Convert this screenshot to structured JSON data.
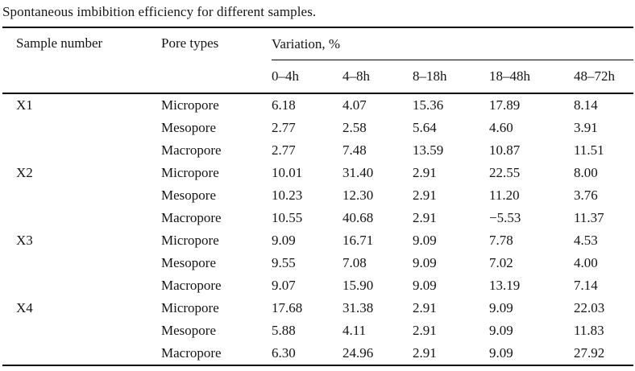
{
  "caption": "Spontaneous imbibition efficiency for different samples.",
  "header": {
    "sample": "Sample number",
    "pore": "Pore types",
    "variation": "Variation, %",
    "intervals": [
      "0–4h",
      "4–8h",
      "8–18h",
      "18–48h",
      "48–72h"
    ]
  },
  "rows": [
    {
      "sample": "X1",
      "pore": "Micropore",
      "v": [
        "6.18",
        "4.07",
        "15.36",
        "17.89",
        "8.14"
      ]
    },
    {
      "sample": "",
      "pore": "Mesopore",
      "v": [
        "2.77",
        "2.58",
        "5.64",
        "4.60",
        "3.91"
      ]
    },
    {
      "sample": "",
      "pore": "Macropore",
      "v": [
        "2.77",
        "7.48",
        "13.59",
        "10.87",
        "11.51"
      ]
    },
    {
      "sample": "X2",
      "pore": "Micropore",
      "v": [
        "10.01",
        "31.40",
        "2.91",
        "22.55",
        "8.00"
      ]
    },
    {
      "sample": "",
      "pore": "Mesopore",
      "v": [
        "10.23",
        "12.30",
        "2.91",
        "11.20",
        "3.76"
      ]
    },
    {
      "sample": "",
      "pore": "Macropore",
      "v": [
        "10.55",
        "40.68",
        "2.91",
        "−5.53",
        "11.37"
      ]
    },
    {
      "sample": "X3",
      "pore": "Micropore",
      "v": [
        "9.09",
        "16.71",
        "9.09",
        "7.78",
        "4.53"
      ]
    },
    {
      "sample": "",
      "pore": "Mesopore",
      "v": [
        "9.55",
        "7.08",
        "9.09",
        "7.02",
        "4.00"
      ]
    },
    {
      "sample": "",
      "pore": "Macropore",
      "v": [
        "9.07",
        "15.90",
        "9.09",
        "13.19",
        "7.14"
      ]
    },
    {
      "sample": "X4",
      "pore": "Micropore",
      "v": [
        "17.68",
        "31.38",
        "2.91",
        "9.09",
        "22.03"
      ]
    },
    {
      "sample": "",
      "pore": "Mesopore",
      "v": [
        "5.88",
        "4.11",
        "2.91",
        "9.09",
        "11.83"
      ]
    },
    {
      "sample": "",
      "pore": "Macropore",
      "v": [
        "6.30",
        "24.96",
        "2.91",
        "9.09",
        "27.92"
      ]
    }
  ],
  "chart_data": {
    "type": "table",
    "title": "Spontaneous imbibition efficiency for different samples.",
    "column_group": {
      "label": "Variation, %",
      "spans": [
        "0–4h",
        "4–8h",
        "8–18h",
        "18–48h",
        "48–72h"
      ]
    },
    "columns": [
      "Sample number",
      "Pore types",
      "0–4h",
      "4–8h",
      "8–18h",
      "18–48h",
      "48–72h"
    ],
    "rows": [
      [
        "X1",
        "Micropore",
        6.18,
        4.07,
        15.36,
        17.89,
        8.14
      ],
      [
        "X1",
        "Mesopore",
        2.77,
        2.58,
        5.64,
        4.6,
        3.91
      ],
      [
        "X1",
        "Macropore",
        2.77,
        7.48,
        13.59,
        10.87,
        11.51
      ],
      [
        "X2",
        "Micropore",
        10.01,
        31.4,
        2.91,
        22.55,
        8.0
      ],
      [
        "X2",
        "Mesopore",
        10.23,
        12.3,
        2.91,
        11.2,
        3.76
      ],
      [
        "X2",
        "Macropore",
        10.55,
        40.68,
        2.91,
        -5.53,
        11.37
      ],
      [
        "X3",
        "Micropore",
        9.09,
        16.71,
        9.09,
        7.78,
        4.53
      ],
      [
        "X3",
        "Mesopore",
        9.55,
        7.08,
        9.09,
        7.02,
        4.0
      ],
      [
        "X3",
        "Macropore",
        9.07,
        15.9,
        9.09,
        13.19,
        7.14
      ],
      [
        "X4",
        "Micropore",
        17.68,
        31.38,
        2.91,
        9.09,
        22.03
      ],
      [
        "X4",
        "Mesopore",
        5.88,
        4.11,
        2.91,
        9.09,
        11.83
      ],
      [
        "X4",
        "Macropore",
        6.3,
        24.96,
        2.91,
        9.09,
        27.92
      ]
    ]
  }
}
